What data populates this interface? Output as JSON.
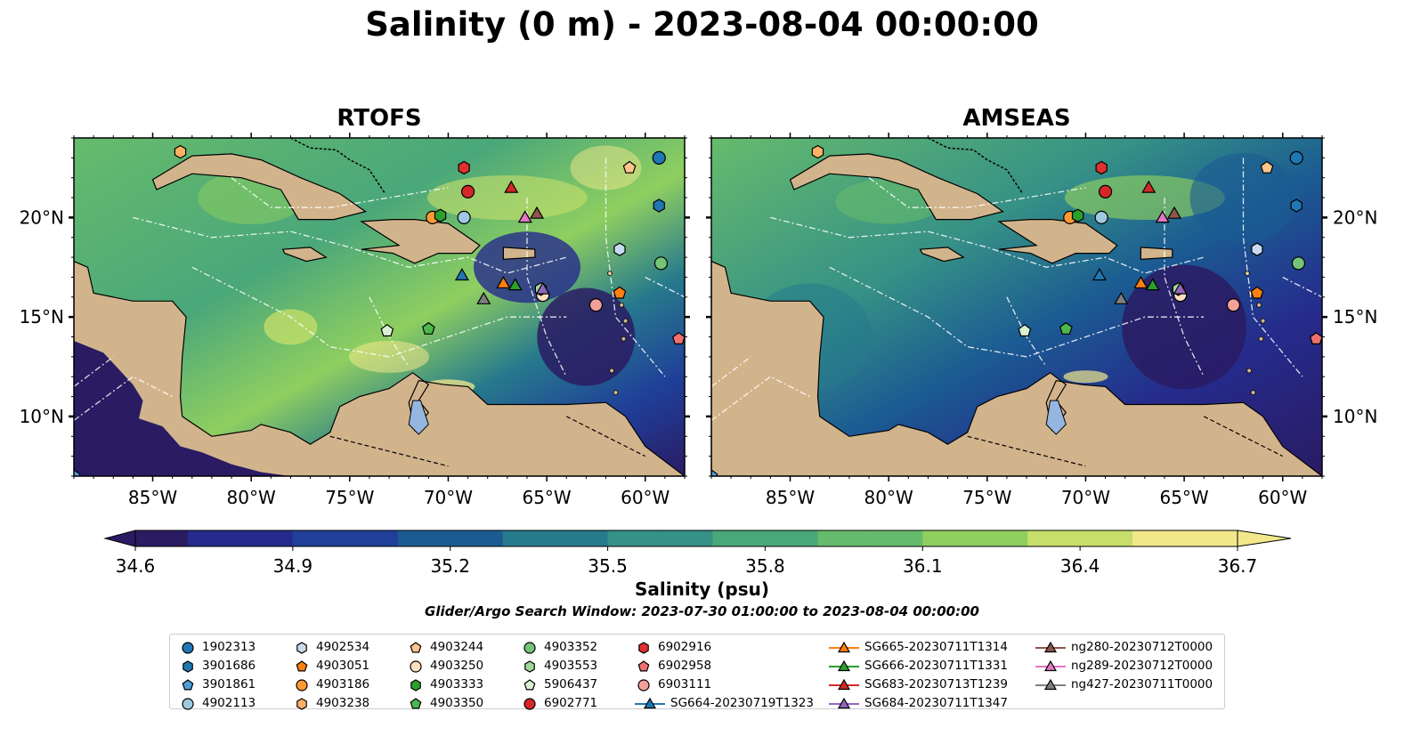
{
  "title": "Salinity (0 m) - 2023-08-04 00:00:00",
  "panels": [
    {
      "title": "RTOFS"
    },
    {
      "title": "AMSEAS"
    }
  ],
  "map": {
    "lon_range": [
      -89,
      -58
    ],
    "lat_range": [
      7,
      24
    ],
    "lon_ticks": [
      "85°W",
      "80°W",
      "75°W",
      "70°W",
      "65°W",
      "60°W"
    ],
    "lon_tick_values": [
      -85,
      -80,
      -75,
      -70,
      -65,
      -60
    ],
    "lat_ticks": [
      "20°N",
      "15°N",
      "10°N"
    ],
    "lat_tick_values": [
      20,
      15,
      10
    ],
    "land_color": "#d2b48c",
    "lake_color": "#94b6e0"
  },
  "colorbar": {
    "label": "Salinity (psu)",
    "min": 34.6,
    "max": 36.7,
    "ticks": [
      "34.6",
      "34.9",
      "35.2",
      "35.5",
      "35.8",
      "36.1",
      "36.4",
      "36.7"
    ],
    "colormap": [
      "#2a1b63",
      "#252b8c",
      "#1f3f99",
      "#1b5b92",
      "#277a8c",
      "#369186",
      "#4aa77a",
      "#66bb6c",
      "#8fcf60",
      "#c7df6a",
      "#f2e88a"
    ]
  },
  "search_window": "Glider/Argo Search Window: 2023-07-30 01:00:00 to 2023-08-04 00:00:00",
  "legend": [
    {
      "label": "1902313",
      "marker": "circle",
      "color": "#1f77b4"
    },
    {
      "label": "3901686",
      "marker": "hexagon",
      "color": "#1f77b4"
    },
    {
      "label": "3901861",
      "marker": "pentagon",
      "color": "#4c9ed9"
    },
    {
      "label": "4902113",
      "marker": "circle",
      "color": "#9ecae1"
    },
    {
      "label": "4902534",
      "marker": "hexagon",
      "color": "#c6dbef"
    },
    {
      "label": "4903051",
      "marker": "pentagon",
      "color": "#ff7f0e"
    },
    {
      "label": "4903186",
      "marker": "circle",
      "color": "#ff9933"
    },
    {
      "label": "4903238",
      "marker": "hexagon",
      "color": "#ffb266"
    },
    {
      "label": "4903244",
      "marker": "pentagon",
      "color": "#ffc58a"
    },
    {
      "label": "4903250",
      "marker": "circle",
      "color": "#ffe0c0"
    },
    {
      "label": "4903333",
      "marker": "hexagon",
      "color": "#2ca02c"
    },
    {
      "label": "4903350",
      "marker": "pentagon",
      "color": "#4cb84c"
    },
    {
      "label": "4903352",
      "marker": "circle",
      "color": "#74c476"
    },
    {
      "label": "4903553",
      "marker": "hexagon",
      "color": "#a1d99b"
    },
    {
      "label": "5906437",
      "marker": "pentagon",
      "color": "#d9f0d3"
    },
    {
      "label": "6902771",
      "marker": "circle",
      "color": "#d62728"
    },
    {
      "label": "6902916",
      "marker": "hexagon",
      "color": "#e03030"
    },
    {
      "label": "6902958",
      "marker": "pentagon",
      "color": "#f07070"
    },
    {
      "label": "6903111",
      "marker": "circle",
      "color": "#f4a09a"
    },
    {
      "label": "SG664-20230719T1323",
      "marker": "triangle-line",
      "color": "#1f77b4"
    },
    {
      "label": "SG665-20230711T1314",
      "marker": "triangle-line",
      "color": "#ff7f0e"
    },
    {
      "label": "SG666-20230711T1331",
      "marker": "triangle-line",
      "color": "#2ca02c"
    },
    {
      "label": "SG683-20230713T1239",
      "marker": "triangle-line",
      "color": "#d62728"
    },
    {
      "label": "SG684-20230711T1347",
      "marker": "triangle-line",
      "color": "#9467bd"
    },
    {
      "label": "ng280-20230712T0000",
      "marker": "triangle-line",
      "color": "#8c564b"
    },
    {
      "label": "ng289-20230712T0000",
      "marker": "triangle-line",
      "color": "#e377c2"
    },
    {
      "label": "ng427-20230711T0000",
      "marker": "triangle-line",
      "color": "#7f7f7f"
    }
  ],
  "observations": [
    {
      "id": "1902313",
      "lon": -59.3,
      "lat": 23.0
    },
    {
      "id": "3901686",
      "lon": -59.3,
      "lat": 20.6
    },
    {
      "id": "3901861",
      "lon": -89.0,
      "lat": 7.0
    },
    {
      "id": "4902113",
      "lon": -69.2,
      "lat": 20.0
    },
    {
      "id": "4902534",
      "lon": -61.3,
      "lat": 18.4
    },
    {
      "id": "4903051",
      "lon": -61.3,
      "lat": 16.2
    },
    {
      "id": "4903186",
      "lon": -70.8,
      "lat": 20.0
    },
    {
      "id": "4903238",
      "lon": -83.6,
      "lat": 23.3
    },
    {
      "id": "4903244",
      "lon": -60.8,
      "lat": 22.5
    },
    {
      "id": "4903250",
      "lon": -65.2,
      "lat": 16.1
    },
    {
      "id": "4903333",
      "lon": -70.4,
      "lat": 20.1
    },
    {
      "id": "4903350",
      "lon": -71.0,
      "lat": 14.4
    },
    {
      "id": "4903352",
      "lon": -59.2,
      "lat": 17.7
    },
    {
      "id": "4903553",
      "lon": -65.3,
      "lat": 16.4
    },
    {
      "id": "5906437",
      "lon": -73.1,
      "lat": 14.3
    },
    {
      "id": "6902771",
      "lon": -69.0,
      "lat": 21.3
    },
    {
      "id": "6902916",
      "lon": -69.2,
      "lat": 22.5
    },
    {
      "id": "6902958",
      "lon": -58.3,
      "lat": 13.9
    },
    {
      "id": "6903111",
      "lon": -62.5,
      "lat": 15.6
    },
    {
      "id": "SG664-20230719T1323",
      "lon": -69.3,
      "lat": 17.1
    },
    {
      "id": "SG665-20230711T1314",
      "lon": -67.2,
      "lat": 16.7
    },
    {
      "id": "SG666-20230711T1331",
      "lon": -66.6,
      "lat": 16.6
    },
    {
      "id": "SG683-20230713T1239",
      "lon": -66.8,
      "lat": 21.5
    },
    {
      "id": "SG684-20230711T1347",
      "lon": -65.2,
      "lat": 16.4
    },
    {
      "id": "ng280-20230712T0000",
      "lon": -65.5,
      "lat": 20.2
    },
    {
      "id": "ng289-20230712T0000",
      "lon": -66.1,
      "lat": 20.0
    },
    {
      "id": "ng427-20230711T0000",
      "lon": -68.2,
      "lat": 15.9
    }
  ]
}
